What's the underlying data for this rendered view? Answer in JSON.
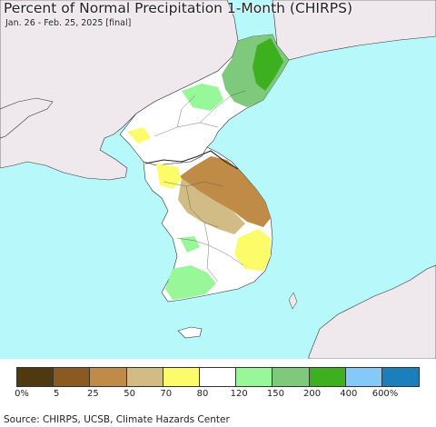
{
  "header": {
    "title": "Percent of Normal Precipitation 1-Month (CHIRPS)",
    "subtitle": "Jan. 26 - Feb. 25, 2025 [final]"
  },
  "legend": {
    "colors": [
      "#4f3911",
      "#8b5a20",
      "#c08b46",
      "#d0bc84",
      "#fcfc6a",
      "#ffffff",
      "#98f899",
      "#7ec97c",
      "#3cb01e",
      "#84c9f8",
      "#1b7ebd"
    ],
    "tick_labels": [
      "0%",
      "5",
      "25",
      "50",
      "70",
      "80",
      "120",
      "150",
      "200",
      "400",
      "600%"
    ]
  },
  "footer": {
    "source": "Source: CHIRPS, UCSB, Climate Hazards Center"
  },
  "map": {
    "ocean_color": "#b7f8fb",
    "land_other_color": "#efe9ee"
  }
}
